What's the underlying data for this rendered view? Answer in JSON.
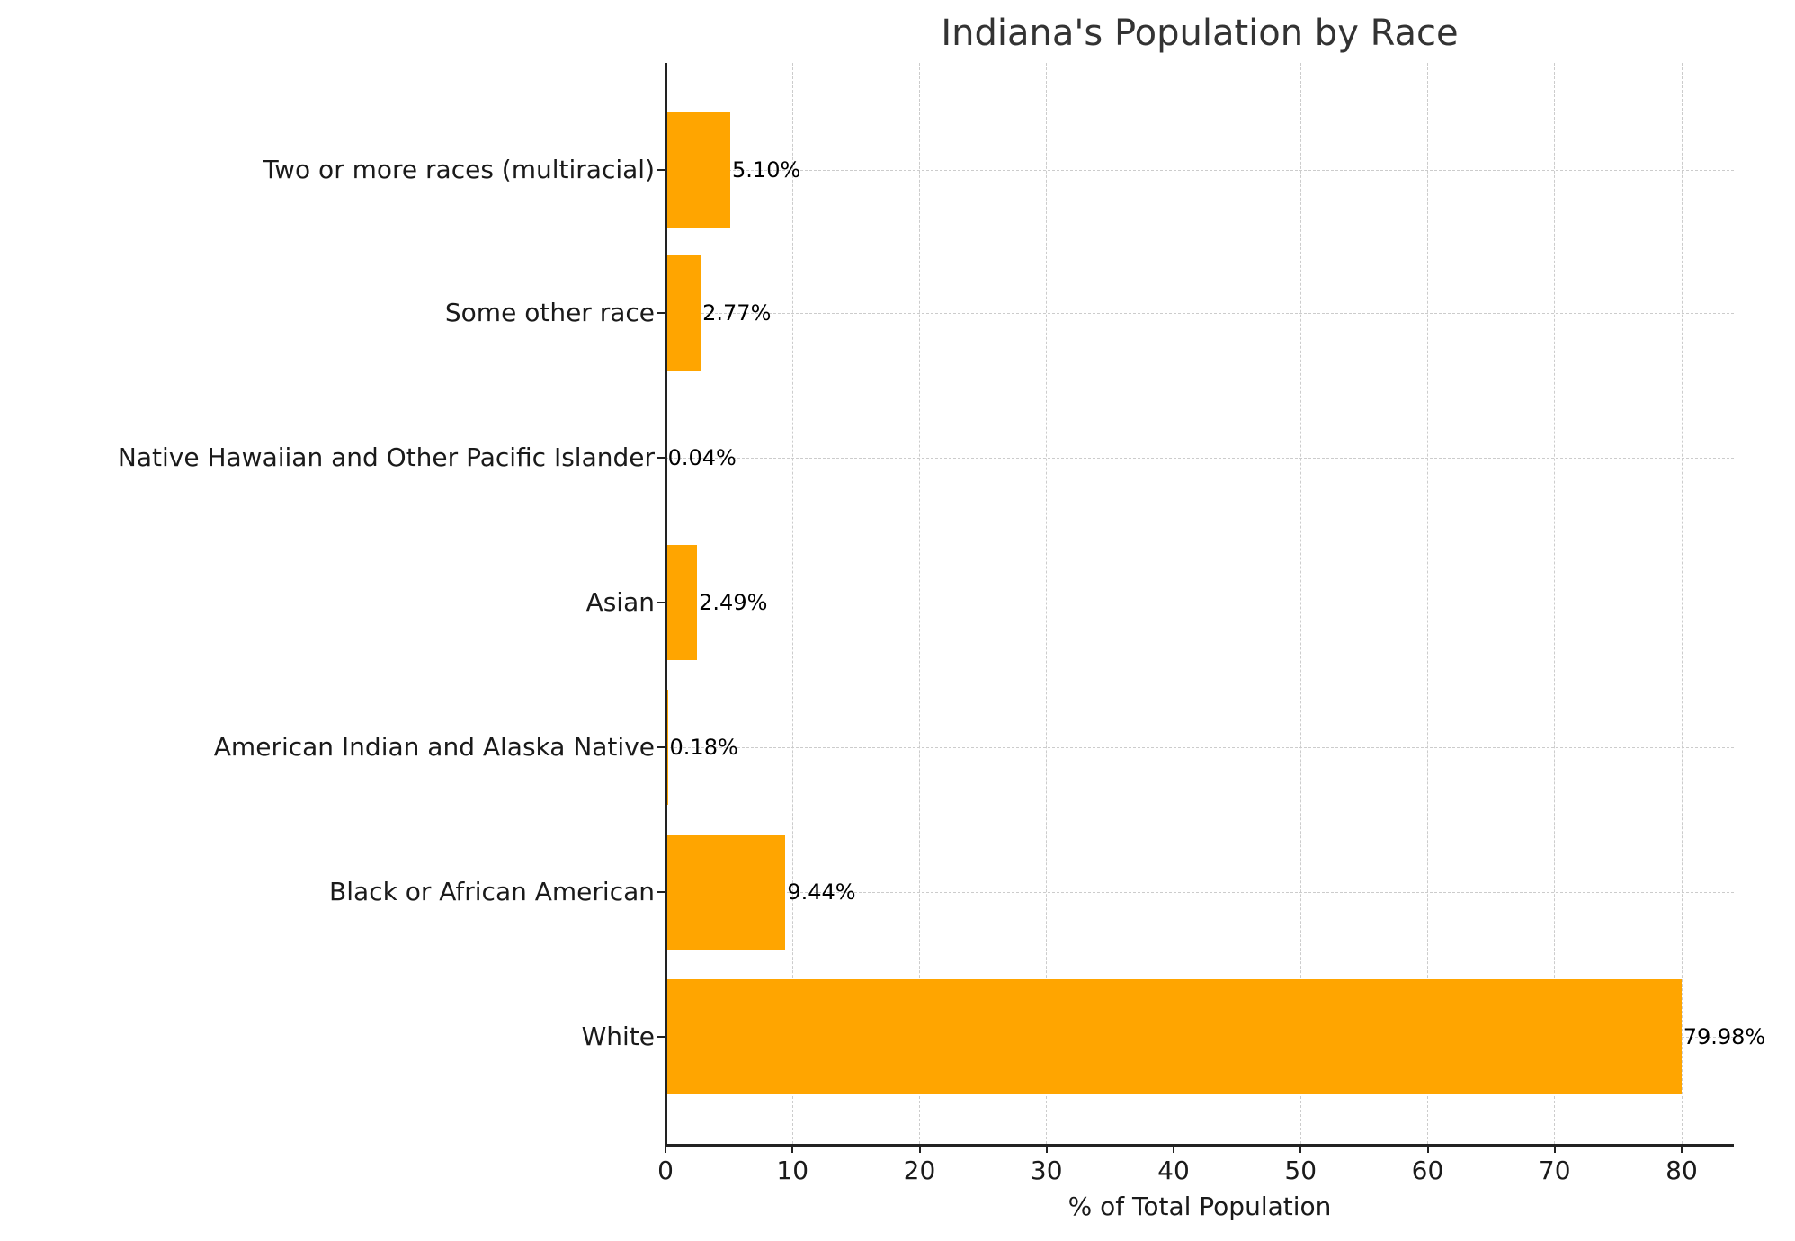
{
  "chart_data": {
    "type": "bar",
    "orientation": "horizontal",
    "title": "Indiana's Population by Race",
    "xlabel": "% of Total Population",
    "ylabel": "",
    "xlim": [
      0,
      84.1
    ],
    "grid": true,
    "grid_style": "dashed",
    "bar_color": "#ffa500",
    "categories": [
      "White",
      "Black or African American",
      "American Indian and Alaska Native",
      "Asian",
      "Native Hawaiian and Other Pacific Islander",
      "Some other race",
      "Two or more races (multiracial)"
    ],
    "values": [
      79.98,
      9.44,
      0.18,
      2.49,
      0.04,
      2.77,
      5.1
    ],
    "value_labels": [
      "79.98%",
      "9.44%",
      "0.18%",
      "2.49%",
      "0.04%",
      "2.77%",
      "5.10%"
    ],
    "x_ticks": [
      "0",
      "10",
      "20",
      "30",
      "40",
      "50",
      "60",
      "70",
      "80"
    ]
  }
}
